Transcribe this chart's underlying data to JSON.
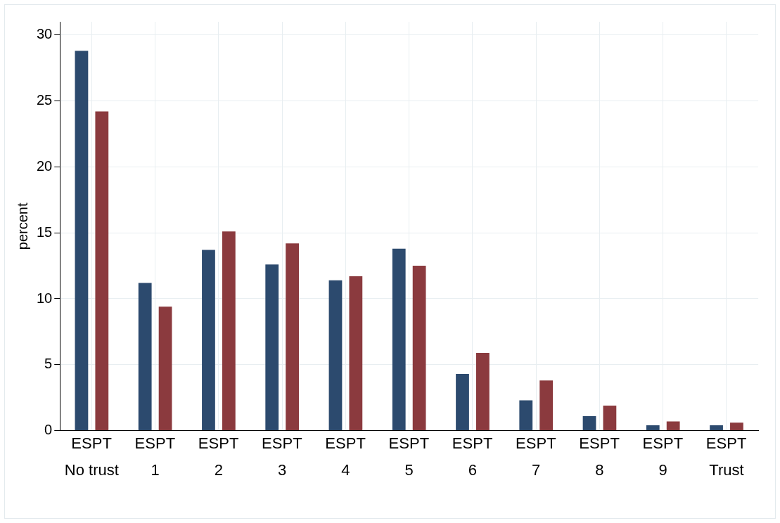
{
  "chart_data": {
    "type": "bar",
    "ylabel": "percent",
    "categories": [
      "No trust",
      "1",
      "2",
      "3",
      "4",
      "5",
      "6",
      "7",
      "8",
      "9",
      "Trust"
    ],
    "series": [
      {
        "name": "ES",
        "color": "#2c4a6e",
        "values": [
          28.8,
          11.2,
          13.7,
          12.6,
          11.4,
          13.8,
          4.3,
          2.3,
          1.1,
          0.4,
          0.4
        ]
      },
      {
        "name": "PT",
        "color": "#8b3a3e",
        "values": [
          24.2,
          9.4,
          15.1,
          14.2,
          11.7,
          12.5,
          5.9,
          3.8,
          1.9,
          0.7,
          0.6
        ]
      }
    ],
    "ylim": [
      0,
      31
    ],
    "yticks": [
      0,
      5,
      10,
      15,
      20,
      25,
      30
    ],
    "grid": true,
    "legend": false
  }
}
